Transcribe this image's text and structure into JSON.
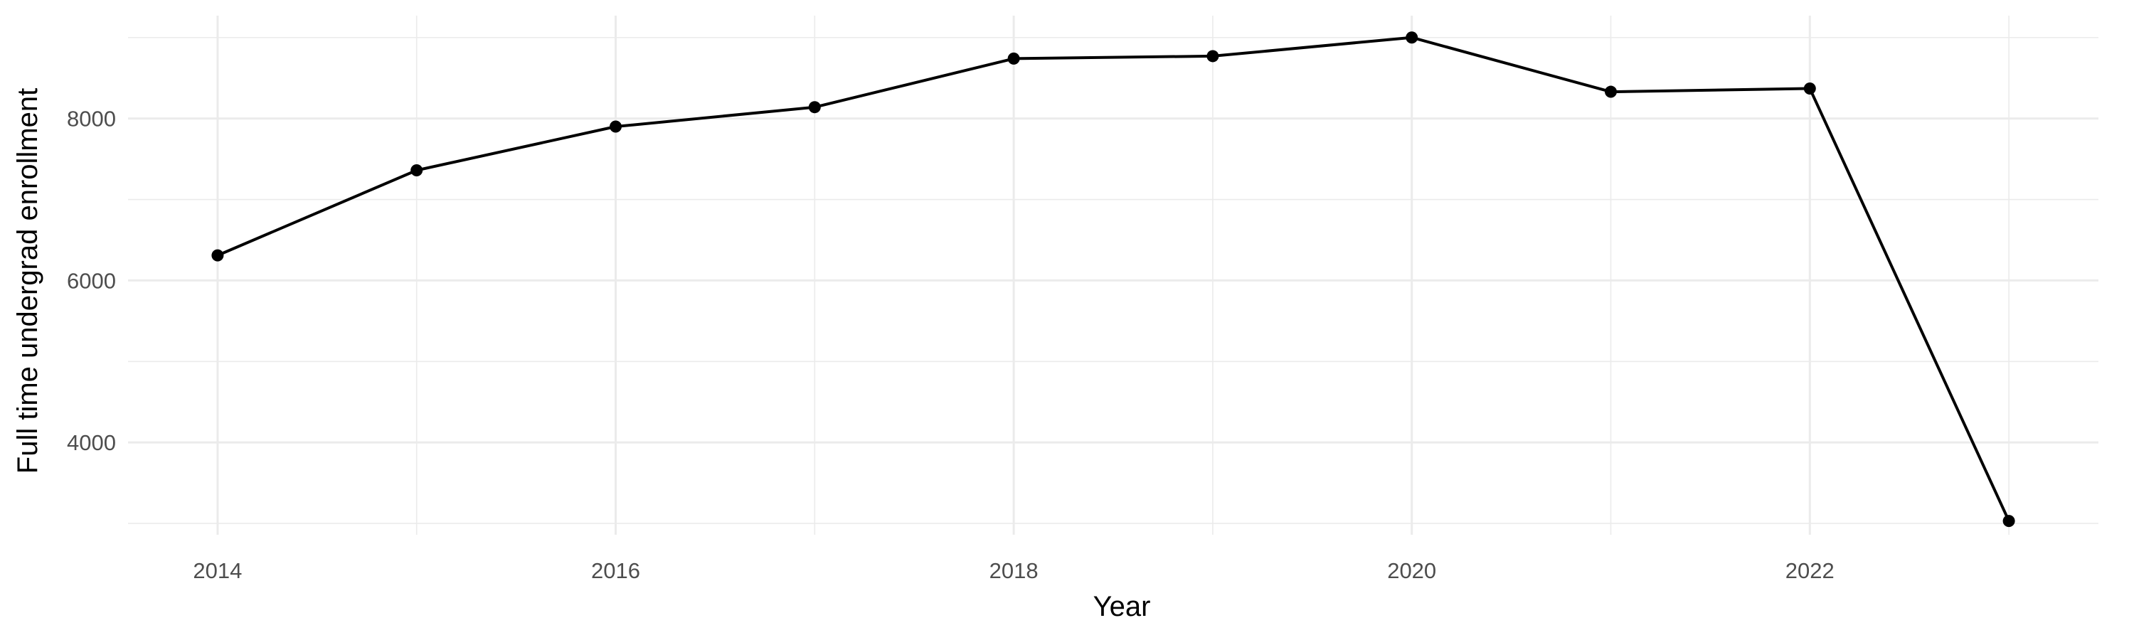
{
  "chart_data": {
    "type": "line",
    "title": "",
    "xlabel": "Year",
    "ylabel": "Full time undergrad enrollment",
    "x": [
      2014,
      2015,
      2016,
      2017,
      2018,
      2019,
      2020,
      2021,
      2022,
      2023
    ],
    "series": [
      {
        "values": [
          6310,
          7360,
          7900,
          8140,
          8740,
          8770,
          9000,
          8330,
          8370,
          3030
        ]
      }
    ],
    "xlim": [
      2013.55,
      2023.45
    ],
    "ylim": [
      2860,
      9270
    ],
    "x_ticks": [
      2014,
      2016,
      2018,
      2020,
      2022
    ],
    "x_tick_labels": [
      "2014",
      "2016",
      "2018",
      "2020",
      "2022"
    ],
    "x_minor_ticks": [
      2015,
      2017,
      2019,
      2021,
      2023
    ],
    "y_ticks": [
      4000,
      6000,
      8000
    ],
    "y_tick_labels": [
      "4000",
      "6000",
      "8000"
    ],
    "y_minor_ticks": [
      3000,
      5000,
      7000,
      9000
    ],
    "grid": true,
    "legend": "none",
    "colors": {
      "line": "#000000",
      "point": "#000000",
      "grid": "#ebebeb",
      "tick_text": "#4d4d4d"
    }
  }
}
